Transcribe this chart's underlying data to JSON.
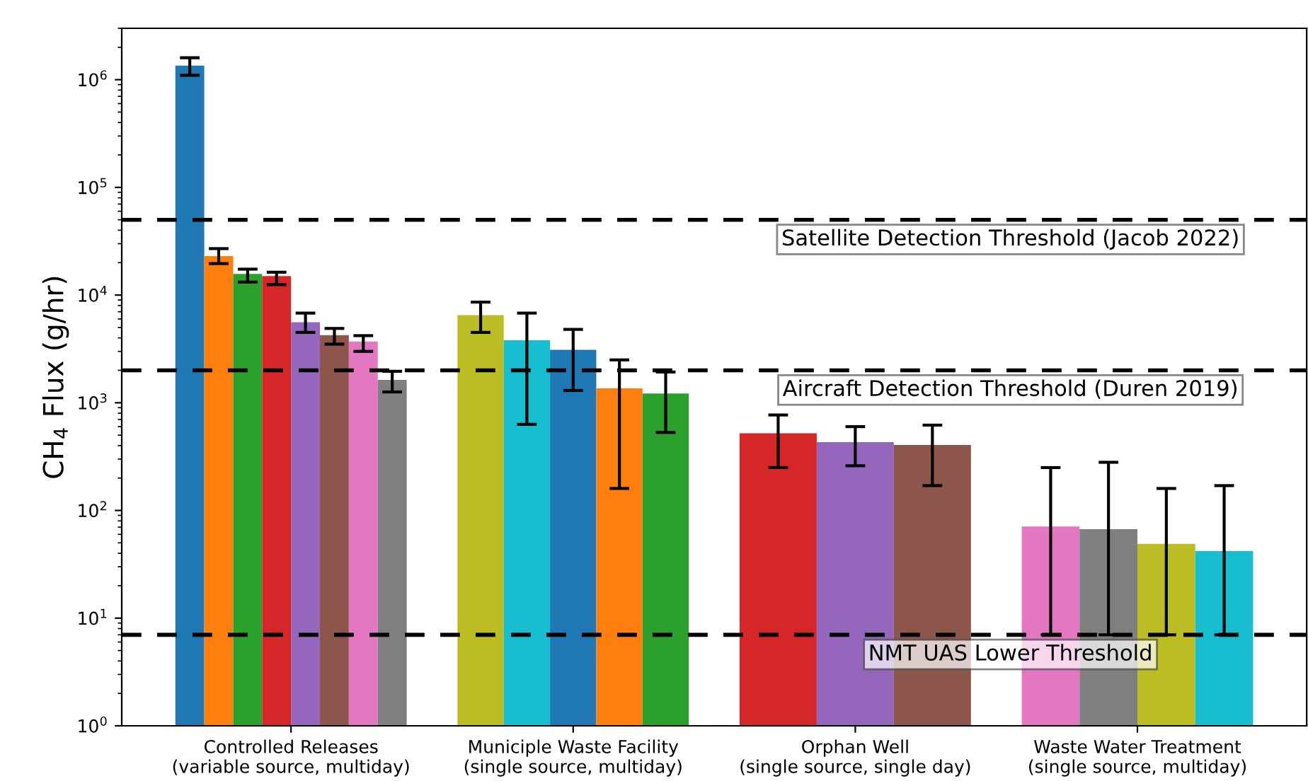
{
  "chart_data": {
    "type": "bar",
    "ylabel": "CH$_{4}$ Flux (g/hr)",
    "log": true,
    "categories": [
      "Controlled Releases\n(variable source, multiday)",
      "Municiple Waste Facility\n(single source, multiday)",
      "Orphan Well\n(single source, single day)",
      "Waste Water Treatment\n(single source, multiday)"
    ],
    "series": [
      {
        "colors": [
          "#1f77b4",
          "#bcbd22",
          "#d62728",
          "#e377c2"
        ],
        "values": [
          1350000,
          6500,
          520,
          71
        ],
        "errors": [
          [
            1100000,
            1600000
          ],
          [
            4500,
            8600
          ],
          [
            250,
            770
          ],
          [
            7,
            250
          ]
        ]
      },
      {
        "colors": [
          "#ff7f0e",
          "#17becf",
          "#9467bd",
          "#7f7f7f"
        ],
        "values": [
          23000,
          3800,
          430,
          67
        ],
        "errors": [
          [
            19600,
            27000
          ],
          [
            630,
            6800
          ],
          [
            260,
            600
          ],
          [
            7,
            280
          ]
        ]
      },
      {
        "colors": [
          "#2ca02c",
          "#1f77b4",
          "#8c564b",
          "#bcbd22"
        ],
        "values": [
          15700,
          3100,
          405,
          49
        ],
        "errors": [
          [
            13200,
            17400
          ],
          [
            1300,
            4800
          ],
          [
            170,
            620
          ],
          [
            7,
            160
          ]
        ]
      },
      {
        "colors": [
          "#d62728",
          "#ff7f0e",
          null,
          "#17becf"
        ],
        "values": [
          15000,
          1360,
          null,
          42
        ],
        "errors": [
          [
            12500,
            16300
          ],
          [
            160,
            2500
          ],
          null,
          [
            7,
            170
          ]
        ]
      },
      {
        "colors": [
          "#9467bd",
          "#2ca02c",
          null,
          null
        ],
        "values": [
          5600,
          1220,
          null,
          null
        ],
        "errors": [
          [
            4500,
            6800
          ],
          [
            530,
            1930
          ],
          null,
          null
        ]
      },
      {
        "colors": [
          "#8c564b",
          null,
          null,
          null
        ],
        "values": [
          4250,
          null,
          null,
          null
        ],
        "errors": [
          [
            3500,
            4900
          ],
          null,
          null,
          null
        ]
      },
      {
        "colors": [
          "#e377c2",
          null,
          null,
          null
        ],
        "values": [
          3700,
          null,
          null,
          null
        ],
        "errors": [
          [
            3000,
            4200
          ],
          null,
          null,
          null
        ]
      },
      {
        "colors": [
          "#7f7f7f",
          null,
          null,
          null
        ],
        "values": [
          1630,
          null,
          null,
          null
        ],
        "errors": [
          [
            1260,
            1960
          ],
          null,
          null,
          null
        ]
      }
    ],
    "ylim": [
      1,
      3000000
    ],
    "yticks": [
      {
        "value": 1,
        "label": "10$^{0}$"
      },
      {
        "value": 10,
        "label": "10$^{1}$"
      },
      {
        "value": 100,
        "label": "10$^{2}$"
      },
      {
        "value": 1000,
        "label": "10$^{3}$"
      },
      {
        "value": 10000,
        "label": "10$^{4}$"
      },
      {
        "value": 100000,
        "label": "10$^{5}$"
      },
      {
        "value": 1000000,
        "label": "10$^{6}$"
      }
    ],
    "ref_lines": [
      {
        "axis": "y",
        "value": 50000,
        "label": "Satellite Detection Threshold (Jacob 2022)",
        "color": "#000000",
        "line_style": "dashed"
      },
      {
        "axis": "y",
        "value": 2000,
        "label": "Aircraft Detection Threshold (Duren 2019)",
        "color": "#000000",
        "line_style": "dashed"
      },
      {
        "axis": "y",
        "value": 7,
        "label": "NMT UAS Lower Threshold",
        "color": "#000000",
        "line_style": "dashed"
      }
    ],
    "grid": false
  }
}
